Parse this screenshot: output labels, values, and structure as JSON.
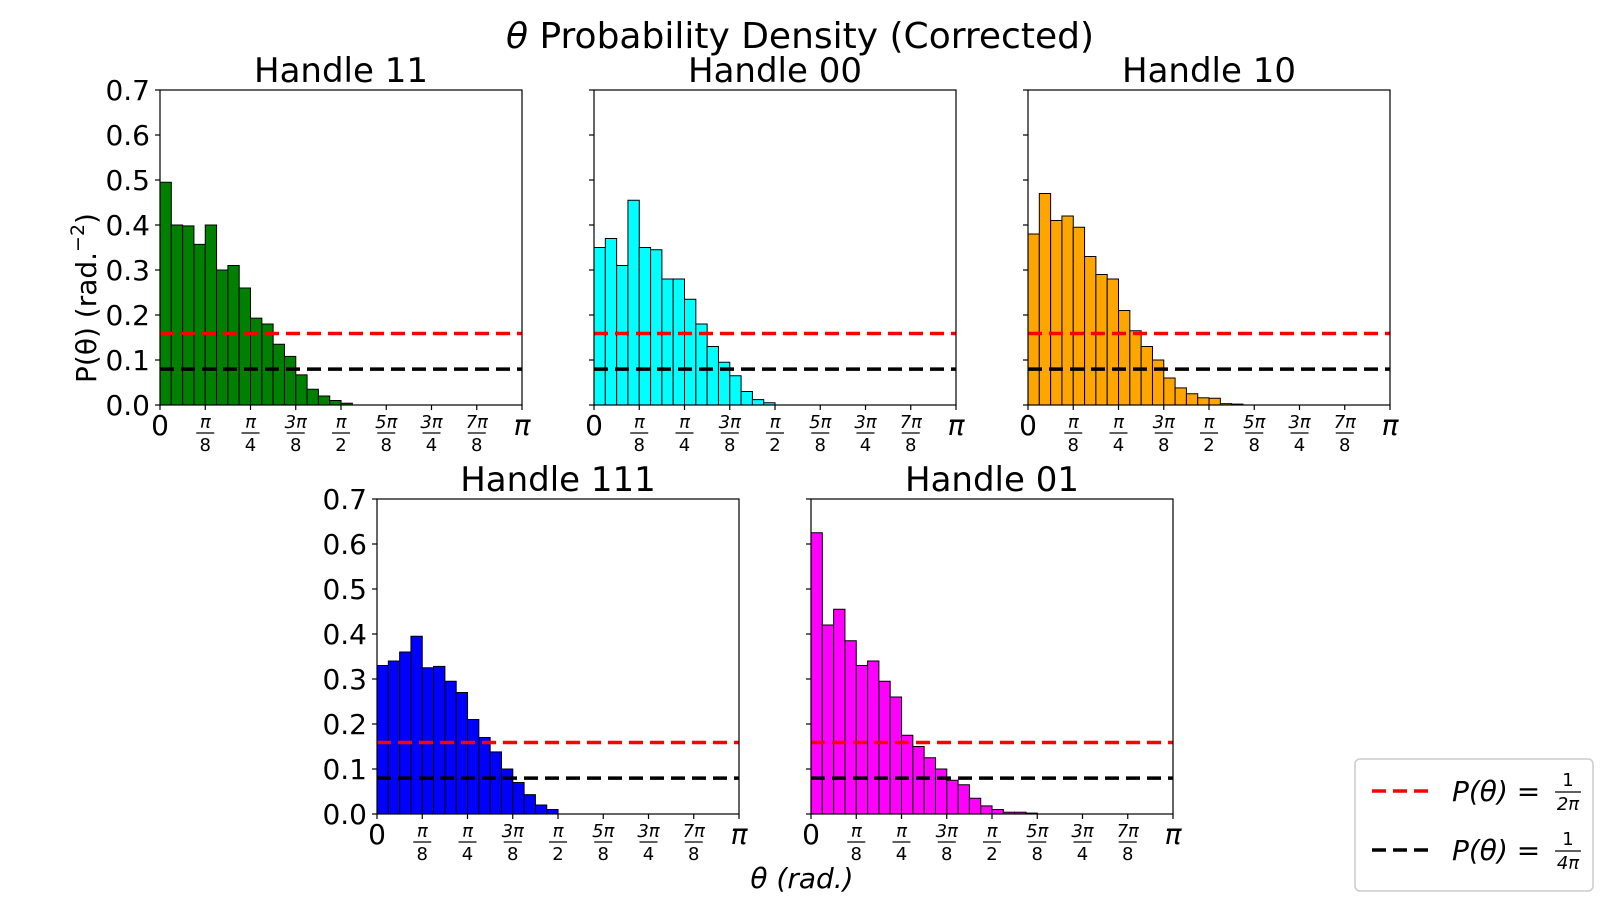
{
  "suptitle_theta": "θ",
  "suptitle_rest": " Probability Density (Corrected)",
  "ylabel": "P(θ) (rad.",
  "ylabel_exp": "−2",
  "ylabel_close": ")",
  "xlabel": "θ (rad.)",
  "y_ticks": [
    "0.0",
    "0.1",
    "0.2",
    "0.3",
    "0.4",
    "0.5",
    "0.6",
    "0.7"
  ],
  "x_ticks": [
    {
      "num": "0",
      "den": ""
    },
    {
      "num": "π",
      "den": "8"
    },
    {
      "num": "π",
      "den": "4"
    },
    {
      "num": "3π",
      "den": "8"
    },
    {
      "num": "π",
      "den": "2"
    },
    {
      "num": "5π",
      "den": "8"
    },
    {
      "num": "3π",
      "den": "4"
    },
    {
      "num": "7π",
      "den": "8"
    },
    {
      "num": "π",
      "den": ""
    }
  ],
  "legend": [
    {
      "label_lhs": "P(θ) = ",
      "num": "1",
      "den": "2π",
      "color": "#ff0000"
    },
    {
      "label_lhs": "P(θ) = ",
      "num": "1",
      "den": "4π",
      "color": "#000000"
    }
  ],
  "chart_data": [
    {
      "type": "bar",
      "title": "Handle 11",
      "color": "#008000",
      "xlim": [
        0,
        3.14159
      ],
      "ylim": [
        0,
        0.7
      ],
      "bin_width": 0.0982,
      "values": [
        0.495,
        0.4,
        0.398,
        0.357,
        0.4,
        0.3,
        0.31,
        0.26,
        0.193,
        0.18,
        0.135,
        0.108,
        0.067,
        0.035,
        0.02,
        0.01,
        0.004,
        0,
        0,
        0,
        0,
        0,
        0,
        0,
        0,
        0,
        0,
        0,
        0,
        0,
        0,
        0
      ],
      "hlines": [
        {
          "y": 0.159,
          "color": "#ff0000"
        },
        {
          "y": 0.0796,
          "color": "#000000"
        }
      ]
    },
    {
      "type": "bar",
      "title": "Handle 00",
      "color": "#00ffff",
      "xlim": [
        0,
        3.14159
      ],
      "ylim": [
        0,
        0.7
      ],
      "bin_width": 0.0982,
      "values": [
        0.35,
        0.37,
        0.31,
        0.455,
        0.35,
        0.345,
        0.28,
        0.28,
        0.235,
        0.18,
        0.13,
        0.095,
        0.065,
        0.03,
        0.012,
        0.005,
        0,
        0,
        0,
        0,
        0,
        0,
        0,
        0,
        0,
        0,
        0,
        0,
        0,
        0,
        0,
        0
      ],
      "hlines": [
        {
          "y": 0.159,
          "color": "#ff0000"
        },
        {
          "y": 0.0796,
          "color": "#000000"
        }
      ]
    },
    {
      "type": "bar",
      "title": "Handle 10",
      "color": "#ffa500",
      "xlim": [
        0,
        3.14159
      ],
      "ylim": [
        0,
        0.7
      ],
      "bin_width": 0.0982,
      "values": [
        0.38,
        0.47,
        0.41,
        0.42,
        0.395,
        0.33,
        0.29,
        0.28,
        0.21,
        0.165,
        0.13,
        0.1,
        0.06,
        0.038,
        0.025,
        0.016,
        0.015,
        0.003,
        0.002,
        0,
        0,
        0,
        0,
        0,
        0,
        0,
        0,
        0,
        0,
        0,
        0,
        0
      ],
      "hlines": [
        {
          "y": 0.159,
          "color": "#ff0000"
        },
        {
          "y": 0.0796,
          "color": "#000000"
        }
      ]
    },
    {
      "type": "bar",
      "title": "Handle 111",
      "color": "#0000ff",
      "xlim": [
        0,
        3.14159
      ],
      "ylim": [
        0,
        0.7
      ],
      "bin_width": 0.0982,
      "values": [
        0.33,
        0.34,
        0.36,
        0.395,
        0.325,
        0.328,
        0.295,
        0.27,
        0.21,
        0.17,
        0.138,
        0.1,
        0.07,
        0.043,
        0.02,
        0.01,
        0,
        0,
        0,
        0,
        0,
        0,
        0,
        0,
        0,
        0,
        0,
        0,
        0,
        0,
        0,
        0
      ],
      "hlines": [
        {
          "y": 0.159,
          "color": "#ff0000"
        },
        {
          "y": 0.0796,
          "color": "#000000"
        }
      ]
    },
    {
      "type": "bar",
      "title": "Handle 01",
      "color": "#ff00ff",
      "xlim": [
        0,
        3.14159
      ],
      "ylim": [
        0,
        0.7
      ],
      "bin_width": 0.0982,
      "values": [
        0.625,
        0.42,
        0.455,
        0.385,
        0.33,
        0.34,
        0.295,
        0.26,
        0.175,
        0.15,
        0.125,
        0.1,
        0.075,
        0.065,
        0.035,
        0.018,
        0.01,
        0.004,
        0.004,
        0.002,
        0,
        0,
        0,
        0,
        0,
        0,
        0,
        0,
        0,
        0,
        0,
        0
      ],
      "hlines": [
        {
          "y": 0.159,
          "color": "#ff0000"
        },
        {
          "y": 0.0796,
          "color": "#000000"
        }
      ]
    }
  ]
}
